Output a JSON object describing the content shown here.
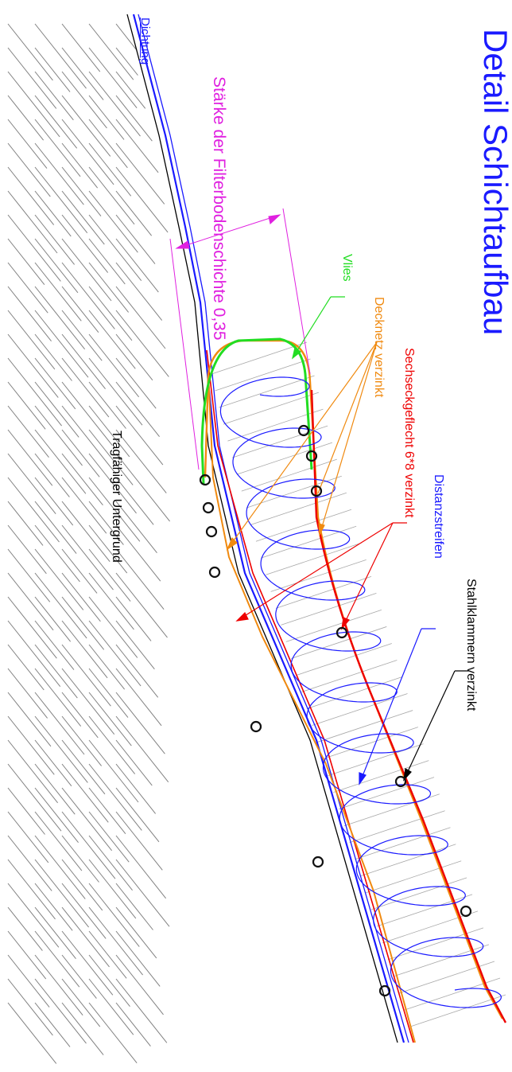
{
  "title": "Detail Schichtaufbau",
  "labels": {
    "dichtung": "Dichtung",
    "staerke": "Stärke der Filterbodenschichte 0,35",
    "vlies": "Vlies",
    "decknetz": "Decknetz verzinkt",
    "sechseckgeflecht": "Sechseckgeflecht 6*8 verzinkt",
    "distanzstreifen": "Distanzstreifen",
    "stahlklammern": "Stahlklammern verzinkt",
    "untergrund": "Tragfähiger Untergrund"
  },
  "colors": {
    "title": "#1a1aff",
    "dichtung": "#1a1aff",
    "staerke": "#e020e0",
    "vlies": "#22dd22",
    "decknetz": "#f08a10",
    "sechseckgeflecht": "#ee0000",
    "distanzstreifen": "#1a1aff",
    "stahlklammern": "#000000",
    "hatch": "#9a9a9a"
  }
}
